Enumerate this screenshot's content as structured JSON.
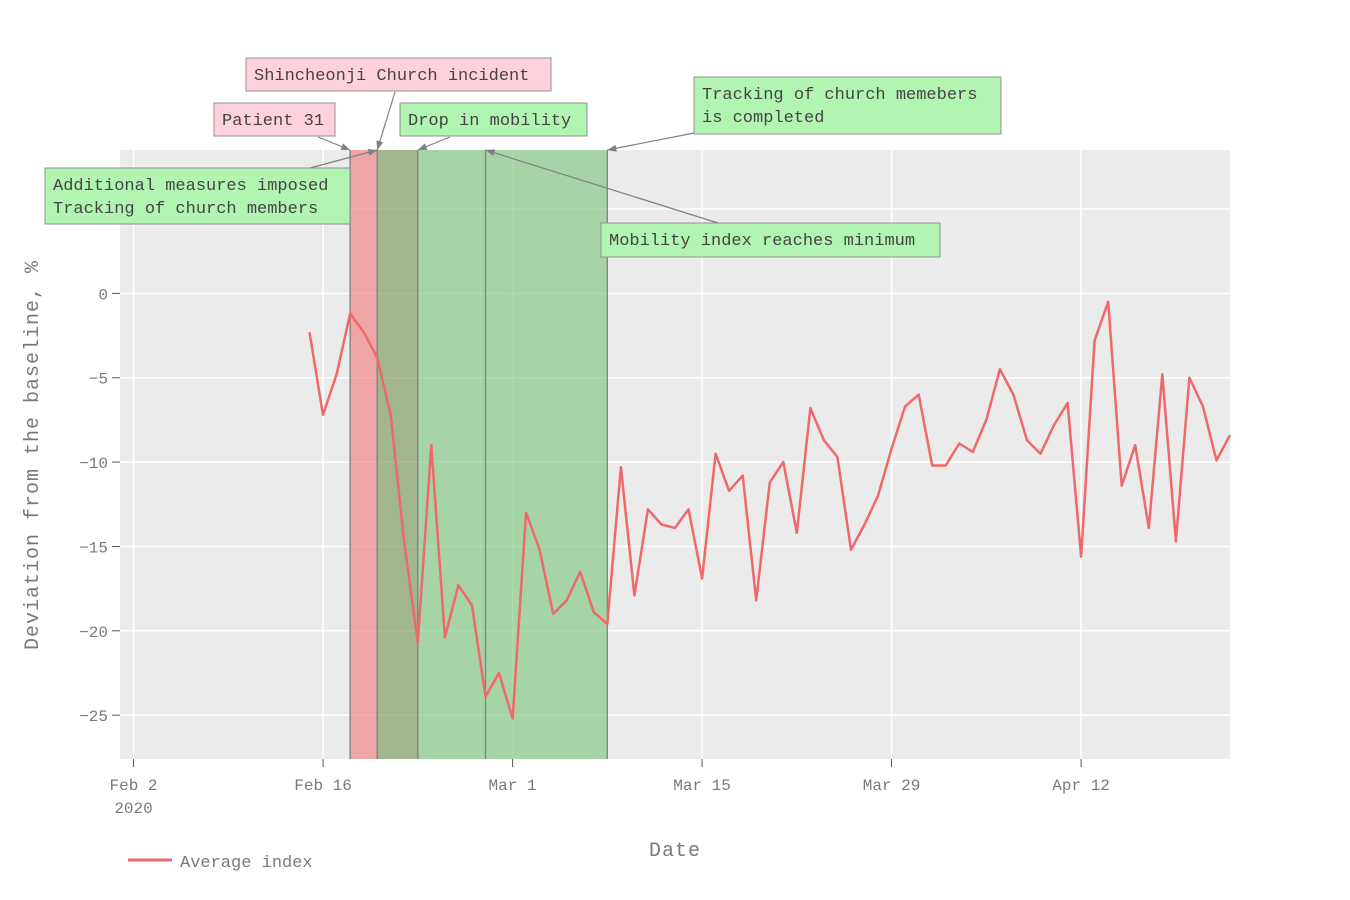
{
  "chart_data": {
    "type": "line",
    "xlabel": "Date",
    "ylabel": "Deviation from the baseline, %",
    "xlim": [
      "2020-02-01",
      "2020-04-23"
    ],
    "ylim": [
      -27.6,
      8.5
    ],
    "x_ticks": [
      {
        "date": "2020-02-02",
        "label": "Feb 2",
        "sublabel": "2020"
      },
      {
        "date": "2020-02-16",
        "label": "Feb 16",
        "sublabel": ""
      },
      {
        "date": "2020-03-01",
        "label": "Mar 1",
        "sublabel": ""
      },
      {
        "date": "2020-03-15",
        "label": "Mar 15",
        "sublabel": ""
      },
      {
        "date": "2020-03-29",
        "label": "Mar 29",
        "sublabel": ""
      },
      {
        "date": "2020-04-12",
        "label": "Apr 12",
        "sublabel": ""
      }
    ],
    "y_ticks": [
      {
        "value": 5,
        "label": "5"
      },
      {
        "value": 0,
        "label": "0"
      },
      {
        "value": -5,
        "label": "−5"
      },
      {
        "value": -10,
        "label": "−10"
      },
      {
        "value": -15,
        "label": "−15"
      },
      {
        "value": -20,
        "label": "−20"
      },
      {
        "value": -25,
        "label": "−25"
      }
    ],
    "grid": true,
    "legend": "bottom-left",
    "series": [
      {
        "name": "Average index",
        "color": "#f0696a",
        "start_date": "2020-02-15",
        "values": [
          -2.3,
          -7.2,
          -4.8,
          -1.2,
          -2.3,
          -3.8,
          -7.2,
          -14.8,
          -20.7,
          -9.0,
          -20.4,
          -17.3,
          -18.5,
          -23.9,
          -22.5,
          -25.2,
          -13.0,
          -15.2,
          -19.0,
          -18.2,
          -16.5,
          -18.9,
          -19.6,
          -10.3,
          -17.9,
          -12.8,
          -13.7,
          -13.9,
          -12.8,
          -16.9,
          -9.5,
          -11.7,
          -10.8,
          -18.2,
          -11.2,
          -10.0,
          -14.2,
          -6.8,
          -8.7,
          -9.7,
          -15.2,
          -13.7,
          -12.0,
          -9.2,
          -6.7,
          -6.0,
          -10.2,
          -10.2,
          -8.9,
          -9.4,
          -7.5,
          -4.5,
          -6.0,
          -8.7,
          -9.5,
          -7.8,
          -6.5,
          -15.6,
          -2.8,
          -0.5,
          -11.4,
          -9.0,
          -13.9,
          -4.8,
          -14.7,
          -5.0,
          -6.7,
          -9.9,
          -8.4
        ]
      }
    ],
    "shaded_periods": [
      {
        "start": "2020-02-18",
        "end": "2020-02-20",
        "color": "#f08080"
      },
      {
        "start": "2020-02-20",
        "end": "2020-02-23",
        "color": "#7a9a5a"
      },
      {
        "start": "2020-02-23",
        "end": "2020-02-28",
        "color": "#82c882"
      },
      {
        "start": "2020-02-28",
        "end": "2020-03-08",
        "color": "#82c882"
      }
    ],
    "annotations": [
      {
        "lines": [
          "Patient 31"
        ],
        "color": "#ffd1dc",
        "date": "2020-02-18"
      },
      {
        "lines": [
          "Shincheonji Church incident"
        ],
        "color": "#ffd1dc",
        "date": "2020-02-20"
      },
      {
        "lines": [
          "Drop in mobility"
        ],
        "color": "#b2f5b2",
        "date": "2020-02-23"
      },
      {
        "lines": [
          "Additional measures imposed",
          "Tracking of church members"
        ],
        "color": "#b2f5b2",
        "date": "2020-02-20"
      },
      {
        "lines": [
          "Mobility index reaches minimum"
        ],
        "color": "#b2f5b2",
        "date": "2020-02-28"
      },
      {
        "lines": [
          "Tracking of church memebers",
          "is completed"
        ],
        "color": "#b2f5b2",
        "date": "2020-03-08"
      }
    ]
  }
}
